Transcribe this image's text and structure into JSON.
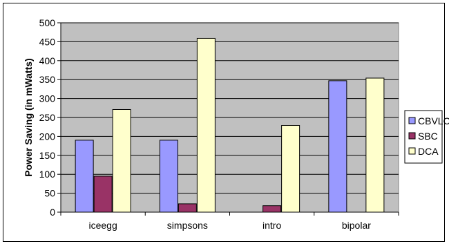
{
  "chart_data": {
    "type": "bar",
    "title": "",
    "xlabel": "",
    "ylabel": "Power Saving (in mWatts)",
    "categories": [
      "iceegg",
      "simpsons",
      "intro",
      "bipolar"
    ],
    "series": [
      {
        "name": "CBVLC",
        "values": [
          190,
          190,
          0,
          347
        ],
        "color": "#9999FF"
      },
      {
        "name": "SBC",
        "values": [
          95,
          22,
          17,
          0
        ],
        "color": "#993366"
      },
      {
        "name": "DCA",
        "values": [
          271,
          459,
          229,
          354
        ],
        "color": "#FFFFCC"
      }
    ],
    "ylim": [
      0,
      500
    ],
    "yticks": [
      0,
      50,
      100,
      150,
      200,
      250,
      300,
      350,
      400,
      450,
      500
    ],
    "grid": true,
    "plot_background": "#C0C0C0",
    "legend_position": "right"
  }
}
